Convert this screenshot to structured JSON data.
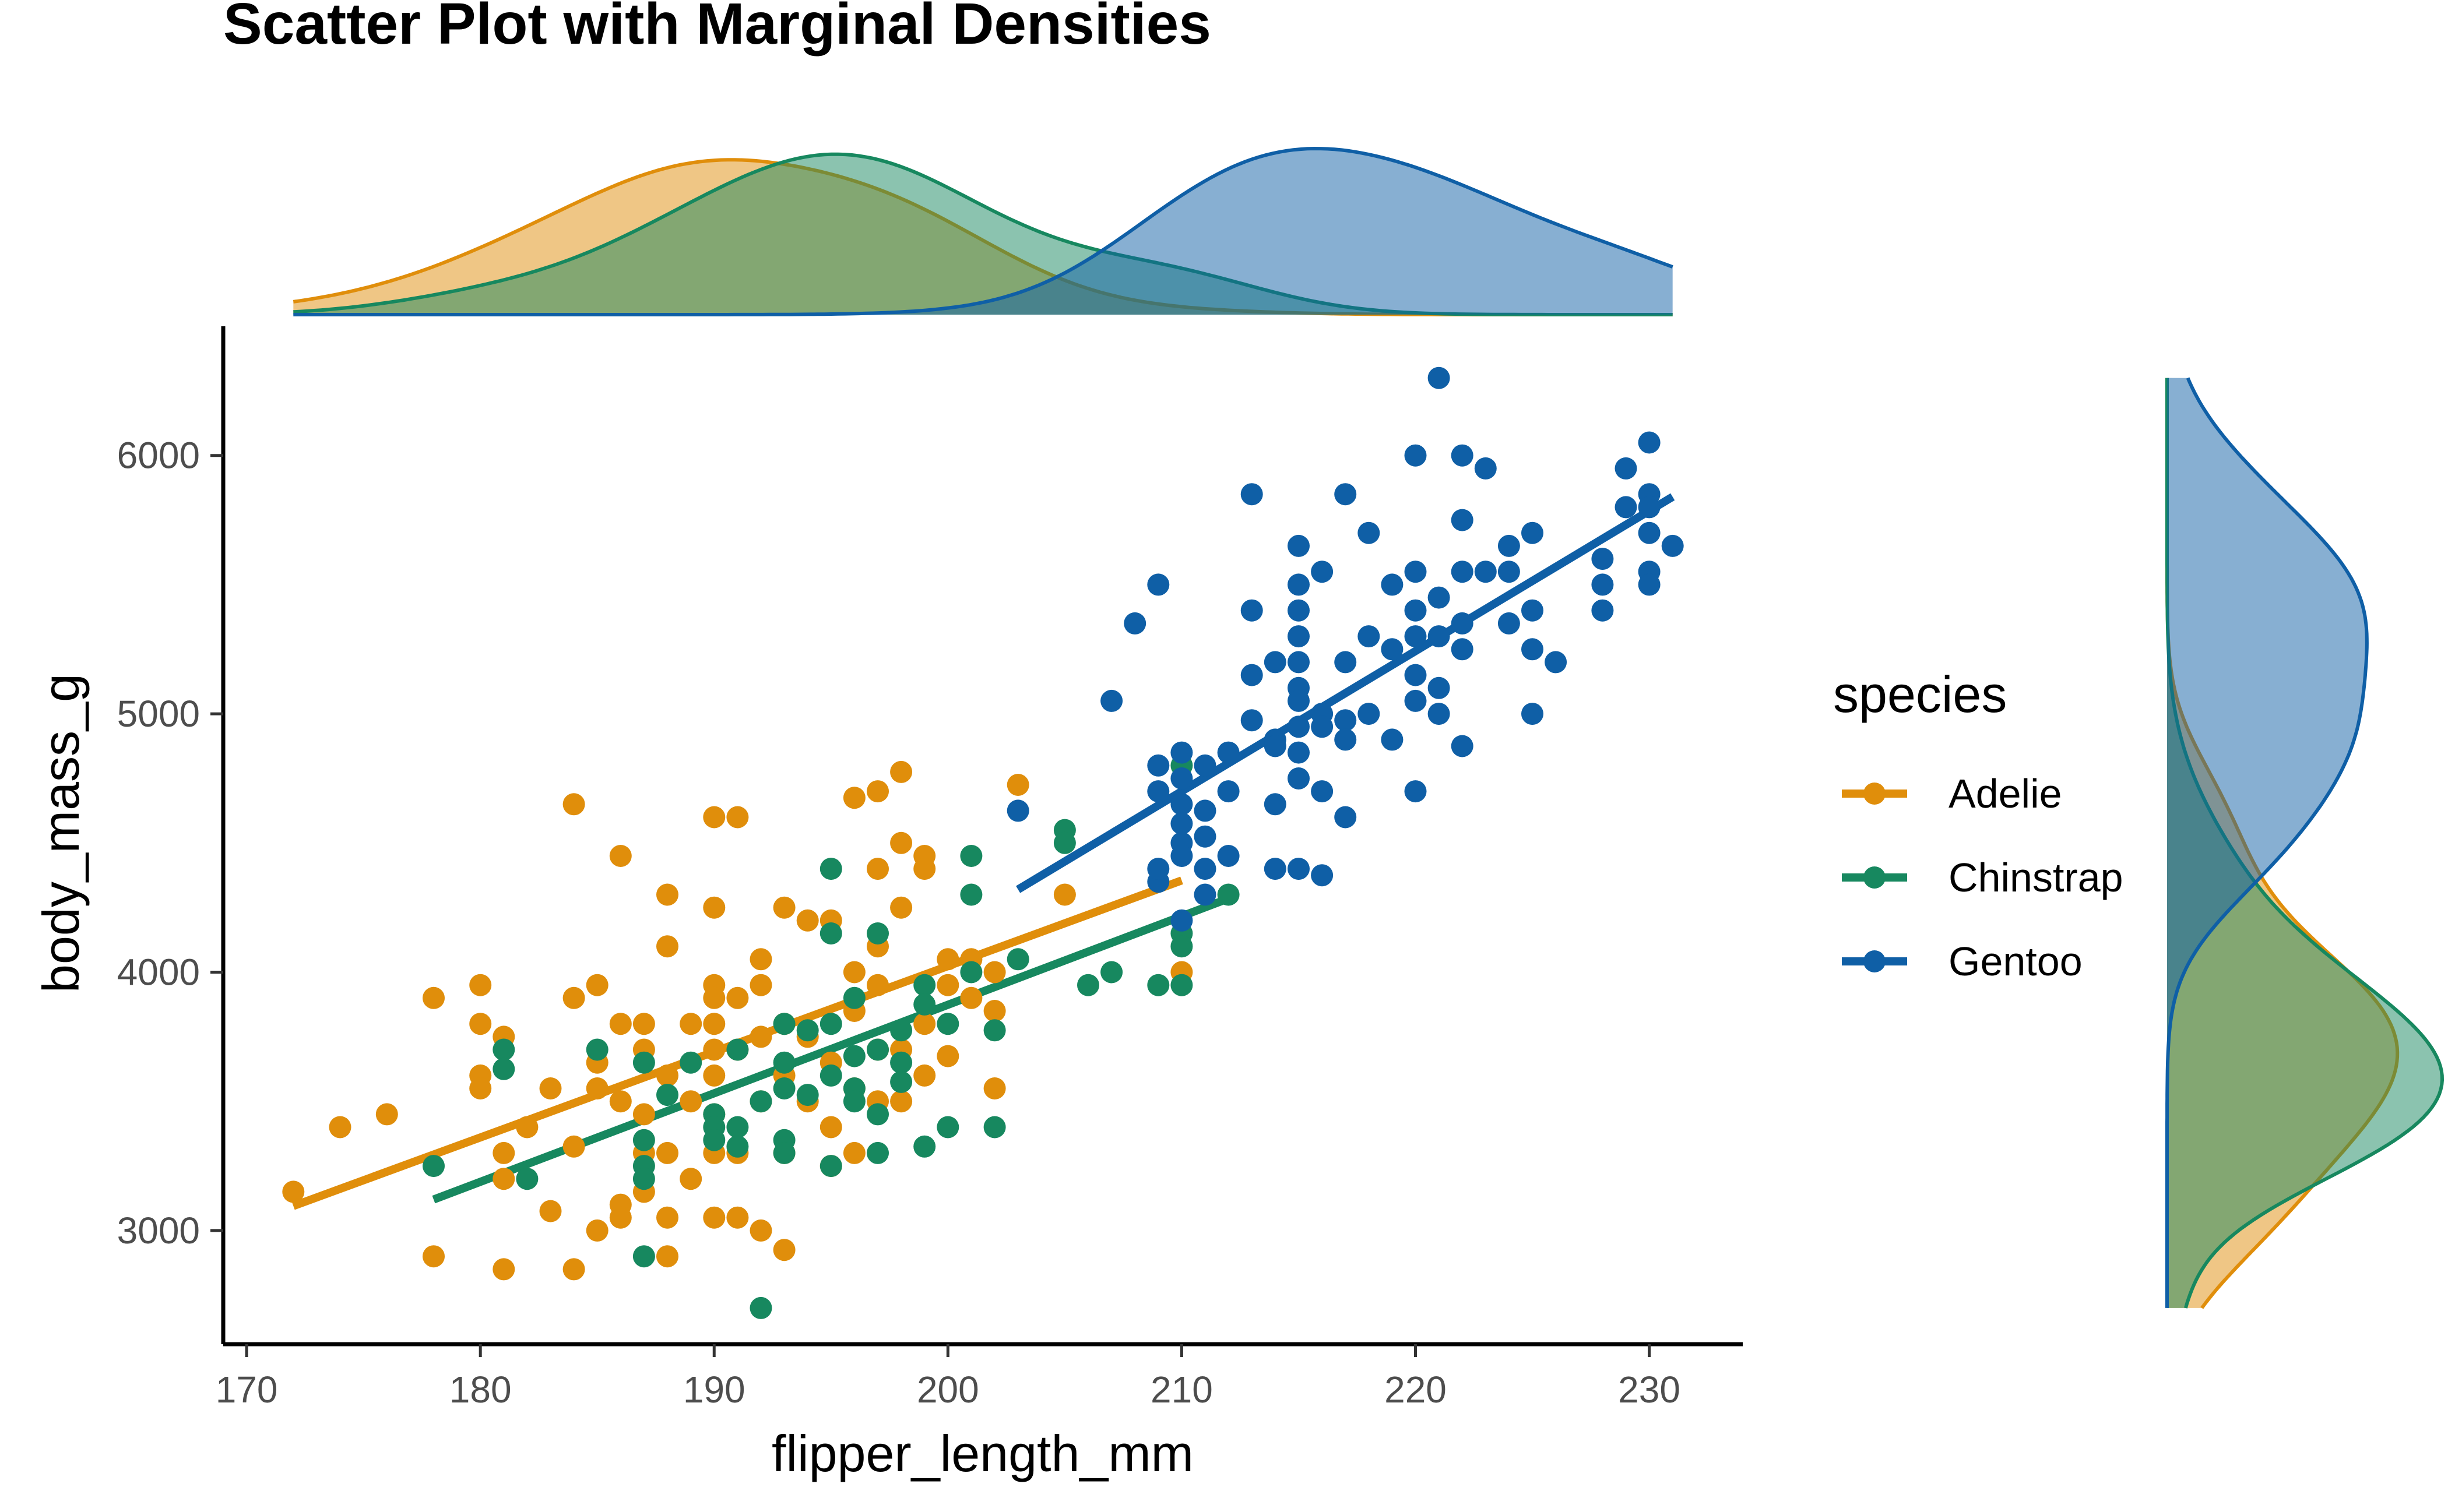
{
  "chart_data": {
    "type": "scatter",
    "title": "Scatter Plot with Marginal Densities",
    "xlabel": "flipper_length_mm",
    "ylabel": "body_mass_g",
    "xlim": [
      169,
      234
    ],
    "ylim": [
      2560,
      6500
    ],
    "x_ticks": [
      170,
      180,
      190,
      200,
      210,
      220,
      230
    ],
    "y_ticks": [
      3000,
      4000,
      5000,
      6000
    ],
    "grid": false,
    "legend": {
      "title": "species",
      "position": "right"
    },
    "series": [
      {
        "name": "Adelie",
        "color": "#E08E0B",
        "fill": "#F0C27D",
        "points": [
          [
            172,
            3150
          ],
          [
            174,
            3400
          ],
          [
            176,
            3450
          ],
          [
            178,
            3900
          ],
          [
            178,
            2900
          ],
          [
            180,
            3950
          ],
          [
            180,
            3800
          ],
          [
            180,
            3600
          ],
          [
            180,
            3550
          ],
          [
            181,
            3750
          ],
          [
            181,
            3300
          ],
          [
            181,
            3200
          ],
          [
            181,
            2850
          ],
          [
            182,
            3400
          ],
          [
            183,
            3550
          ],
          [
            183,
            3075
          ],
          [
            184,
            4650
          ],
          [
            184,
            3900
          ],
          [
            184,
            3325
          ],
          [
            184,
            2850
          ],
          [
            185,
            3950
          ],
          [
            185,
            3650
          ],
          [
            185,
            3550
          ],
          [
            185,
            3000
          ],
          [
            186,
            4450
          ],
          [
            186,
            3800
          ],
          [
            186,
            3500
          ],
          [
            186,
            3100
          ],
          [
            186,
            3050
          ],
          [
            187,
            3800
          ],
          [
            187,
            3700
          ],
          [
            187,
            3450
          ],
          [
            187,
            3300
          ],
          [
            187,
            3150
          ],
          [
            188,
            4300
          ],
          [
            188,
            4100
          ],
          [
            188,
            3600
          ],
          [
            188,
            3300
          ],
          [
            188,
            3050
          ],
          [
            188,
            2900
          ],
          [
            189,
            3800
          ],
          [
            189,
            3500
          ],
          [
            189,
            3200
          ],
          [
            190,
            4600
          ],
          [
            190,
            4250
          ],
          [
            190,
            3950
          ],
          [
            190,
            3900
          ],
          [
            190,
            3800
          ],
          [
            190,
            3700
          ],
          [
            190,
            3600
          ],
          [
            190,
            3450
          ],
          [
            190,
            3300
          ],
          [
            190,
            3050
          ],
          [
            191,
            4600
          ],
          [
            191,
            3900
          ],
          [
            191,
            3700
          ],
          [
            191,
            3300
          ],
          [
            191,
            3050
          ],
          [
            192,
            4050
          ],
          [
            192,
            3950
          ],
          [
            192,
            3750
          ],
          [
            192,
            3500
          ],
          [
            192,
            3000
          ],
          [
            193,
            4250
          ],
          [
            193,
            3800
          ],
          [
            193,
            3600
          ],
          [
            193,
            3300
          ],
          [
            193,
            2925
          ],
          [
            194,
            4200
          ],
          [
            194,
            3750
          ],
          [
            194,
            3500
          ],
          [
            195,
            4200
          ],
          [
            195,
            3650
          ],
          [
            195,
            3400
          ],
          [
            195,
            3250
          ],
          [
            196,
            4675
          ],
          [
            196,
            4000
          ],
          [
            196,
            3850
          ],
          [
            196,
            3550
          ],
          [
            196,
            3300
          ],
          [
            197,
            4700
          ],
          [
            197,
            4400
          ],
          [
            197,
            4100
          ],
          [
            197,
            3950
          ],
          [
            197,
            3700
          ],
          [
            197,
            3500
          ],
          [
            198,
            4775
          ],
          [
            198,
            4500
          ],
          [
            198,
            4250
          ],
          [
            198,
            3700
          ],
          [
            198,
            3500
          ],
          [
            199,
            4450
          ],
          [
            199,
            4400
          ],
          [
            199,
            3800
          ],
          [
            199,
            3600
          ],
          [
            200,
            4050
          ],
          [
            200,
            3950
          ],
          [
            200,
            3675
          ],
          [
            201,
            4050
          ],
          [
            201,
            3900
          ],
          [
            202,
            4000
          ],
          [
            202,
            3850
          ],
          [
            202,
            3550
          ],
          [
            203,
            4725
          ],
          [
            205,
            4300
          ],
          [
            210,
            4000
          ]
        ],
        "fit": [
          [
            172,
            3095
          ],
          [
            210,
            4355
          ]
        ]
      },
      {
        "name": "Chinstrap",
        "color": "#17885F",
        "fill": "#8ACBB2",
        "points": [
          [
            178,
            3250
          ],
          [
            181,
            3700
          ],
          [
            181,
            3625
          ],
          [
            182,
            3200
          ],
          [
            185,
            3700
          ],
          [
            187,
            3650
          ],
          [
            187,
            3350
          ],
          [
            187,
            3250
          ],
          [
            187,
            3200
          ],
          [
            187,
            2900
          ],
          [
            188,
            3525
          ],
          [
            189,
            3650
          ],
          [
            190,
            3450
          ],
          [
            190,
            3400
          ],
          [
            190,
            3350
          ],
          [
            191,
            3700
          ],
          [
            191,
            3400
          ],
          [
            191,
            3325
          ],
          [
            192,
            3500
          ],
          [
            192,
            2700
          ],
          [
            193,
            3800
          ],
          [
            193,
            3650
          ],
          [
            193,
            3550
          ],
          [
            193,
            3350
          ],
          [
            193,
            3300
          ],
          [
            194,
            3775
          ],
          [
            194,
            3525
          ],
          [
            195,
            4400
          ],
          [
            195,
            4150
          ],
          [
            195,
            3800
          ],
          [
            195,
            3600
          ],
          [
            195,
            3250
          ],
          [
            196,
            3900
          ],
          [
            196,
            3675
          ],
          [
            196,
            3550
          ],
          [
            196,
            3500
          ],
          [
            197,
            4150
          ],
          [
            197,
            3700
          ],
          [
            197,
            3450
          ],
          [
            197,
            3300
          ],
          [
            198,
            3775
          ],
          [
            198,
            3650
          ],
          [
            198,
            3575
          ],
          [
            199,
            3950
          ],
          [
            199,
            3875
          ],
          [
            199,
            3325
          ],
          [
            200,
            3800
          ],
          [
            200,
            3400
          ],
          [
            201,
            4450
          ],
          [
            201,
            4300
          ],
          [
            201,
            4000
          ],
          [
            202,
            3775
          ],
          [
            202,
            3400
          ],
          [
            203,
            4050
          ],
          [
            205,
            4550
          ],
          [
            205,
            4500
          ],
          [
            206,
            3950
          ],
          [
            207,
            4000
          ],
          [
            209,
            3950
          ],
          [
            210,
            4800
          ],
          [
            210,
            4150
          ],
          [
            210,
            4100
          ],
          [
            210,
            3950
          ],
          [
            212,
            4300
          ]
        ],
        "fit": [
          [
            178,
            3120
          ],
          [
            212,
            4285
          ]
        ]
      },
      {
        "name": "Gentoo",
        "color": "#0F5FA6",
        "fill": "#89ACD1",
        "points": [
          [
            203,
            4625
          ],
          [
            207,
            5050
          ],
          [
            208,
            5350
          ],
          [
            209,
            4800
          ],
          [
            209,
            4700
          ],
          [
            209,
            5500
          ],
          [
            209,
            4350
          ],
          [
            209,
            4400
          ],
          [
            210,
            4850
          ],
          [
            210,
            4750
          ],
          [
            210,
            4650
          ],
          [
            210,
            4575
          ],
          [
            210,
            4500
          ],
          [
            210,
            4450
          ],
          [
            210,
            4200
          ],
          [
            211,
            4800
          ],
          [
            211,
            4625
          ],
          [
            211,
            4525
          ],
          [
            211,
            4400
          ],
          [
            211,
            4300
          ],
          [
            212,
            4850
          ],
          [
            212,
            4700
          ],
          [
            212,
            4450
          ],
          [
            213,
            5850
          ],
          [
            213,
            5400
          ],
          [
            213,
            5150
          ],
          [
            213,
            4975
          ],
          [
            214,
            5200
          ],
          [
            214,
            4900
          ],
          [
            214,
            4875
          ],
          [
            214,
            4650
          ],
          [
            214,
            4400
          ],
          [
            215,
            5650
          ],
          [
            215,
            5500
          ],
          [
            215,
            5400
          ],
          [
            215,
            5300
          ],
          [
            215,
            5200
          ],
          [
            215,
            5100
          ],
          [
            215,
            5050
          ],
          [
            215,
            4950
          ],
          [
            215,
            4850
          ],
          [
            215,
            4750
          ],
          [
            215,
            4400
          ],
          [
            216,
            5550
          ],
          [
            216,
            5000
          ],
          [
            216,
            4950
          ],
          [
            216,
            4700
          ],
          [
            216,
            4375
          ],
          [
            217,
            5850
          ],
          [
            217,
            5200
          ],
          [
            217,
            4975
          ],
          [
            217,
            4900
          ],
          [
            217,
            4600
          ],
          [
            218,
            5700
          ],
          [
            218,
            5300
          ],
          [
            218,
            5000
          ],
          [
            219,
            5500
          ],
          [
            219,
            5250
          ],
          [
            219,
            4900
          ],
          [
            220,
            6000
          ],
          [
            220,
            5550
          ],
          [
            220,
            5400
          ],
          [
            220,
            5300
          ],
          [
            220,
            5150
          ],
          [
            220,
            5050
          ],
          [
            220,
            4700
          ],
          [
            221,
            6300
          ],
          [
            221,
            5450
          ],
          [
            221,
            5300
          ],
          [
            221,
            5100
          ],
          [
            221,
            5000
          ],
          [
            222,
            6000
          ],
          [
            222,
            5750
          ],
          [
            222,
            5550
          ],
          [
            222,
            5350
          ],
          [
            222,
            5250
          ],
          [
            222,
            4875
          ],
          [
            223,
            5950
          ],
          [
            223,
            5550
          ],
          [
            224,
            5650
          ],
          [
            224,
            5550
          ],
          [
            224,
            5350
          ],
          [
            225,
            5700
          ],
          [
            225,
            5400
          ],
          [
            225,
            5250
          ],
          [
            225,
            5000
          ],
          [
            226,
            5200
          ],
          [
            228,
            5600
          ],
          [
            228,
            5500
          ],
          [
            228,
            5400
          ],
          [
            229,
            5950
          ],
          [
            229,
            5800
          ],
          [
            230,
            6050
          ],
          [
            230,
            5850
          ],
          [
            230,
            5800
          ],
          [
            230,
            5700
          ],
          [
            230,
            5550
          ],
          [
            230,
            5500
          ],
          [
            231,
            5650
          ]
        ],
        "fit": [
          [
            203,
            4320
          ],
          [
            231,
            5840
          ]
        ]
      }
    ]
  }
}
